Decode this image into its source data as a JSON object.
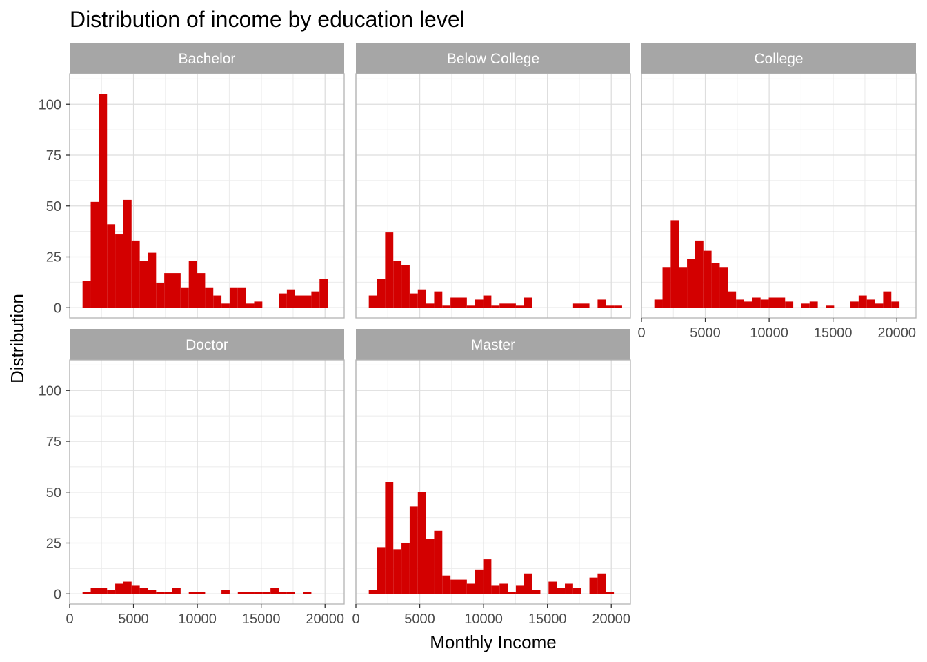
{
  "chart_data": {
    "type": "bar",
    "chart_kind": "faceted histogram",
    "title": "Distribution of income by education level",
    "xlabel": "Monthly Income",
    "ylabel": "Distribution",
    "xlim": [
      0,
      21500
    ],
    "ylim": [
      -5,
      115
    ],
    "x_ticks": [
      0,
      5000,
      10000,
      15000,
      20000
    ],
    "x_tick_labels": [
      "0",
      "5000",
      "10000",
      "15000",
      "20000"
    ],
    "y_ticks": [
      0,
      25,
      50,
      75,
      100
    ],
    "y_tick_labels": [
      "0",
      "25",
      "50",
      "75",
      "100"
    ],
    "bin_width": 640,
    "bin_starts": [
      1009,
      1649,
      2289,
      2929,
      3569,
      4209,
      4849,
      5489,
      6129,
      6769,
      7409,
      8049,
      8689,
      9329,
      9969,
      10609,
      11249,
      11889,
      12529,
      13169,
      13809,
      14449,
      15089,
      15729,
      16369,
      17009,
      17649,
      18289,
      18929,
      19569,
      20209
    ],
    "fill_color": "#D30000",
    "strip_color": "#A6A6A6",
    "strip_text_color": "#FFFFFF",
    "grid": true,
    "legend": "none",
    "facets": [
      {
        "name": "Bachelor",
        "values": [
          13,
          52,
          105,
          41,
          36,
          53,
          33,
          23,
          27,
          12,
          17,
          17,
          10,
          23,
          17,
          10,
          6,
          2,
          10,
          10,
          2,
          3,
          0,
          0,
          7,
          9,
          6,
          6,
          8,
          14,
          0
        ]
      },
      {
        "name": "Below College",
        "values": [
          6,
          14,
          37,
          23,
          21,
          7,
          9,
          2,
          8,
          1,
          5,
          5,
          1,
          4,
          6,
          1,
          2,
          2,
          1,
          5,
          0,
          0,
          0,
          0,
          0,
          2,
          2,
          0,
          4,
          1,
          1
        ]
      },
      {
        "name": "College",
        "values": [
          4,
          20,
          43,
          20,
          24,
          33,
          28,
          22,
          20,
          8,
          4,
          3,
          5,
          4,
          5,
          5,
          3,
          0,
          2,
          3,
          0,
          1,
          0,
          0,
          3,
          6,
          4,
          2,
          8,
          3,
          0
        ]
      },
      {
        "name": "Doctor",
        "values": [
          1,
          3,
          3,
          2,
          5,
          6,
          4,
          3,
          2,
          1,
          1,
          3,
          0,
          1,
          1,
          0,
          0,
          2,
          0,
          1,
          1,
          1,
          1,
          3,
          1,
          1,
          0,
          1,
          0,
          0,
          0
        ]
      },
      {
        "name": "Master",
        "values": [
          2,
          23,
          55,
          22,
          25,
          43,
          50,
          27,
          31,
          9,
          7,
          7,
          5,
          12,
          17,
          4,
          5,
          1,
          4,
          10,
          2,
          0,
          6,
          3,
          5,
          3,
          0,
          8,
          10,
          1,
          0
        ]
      }
    ]
  }
}
